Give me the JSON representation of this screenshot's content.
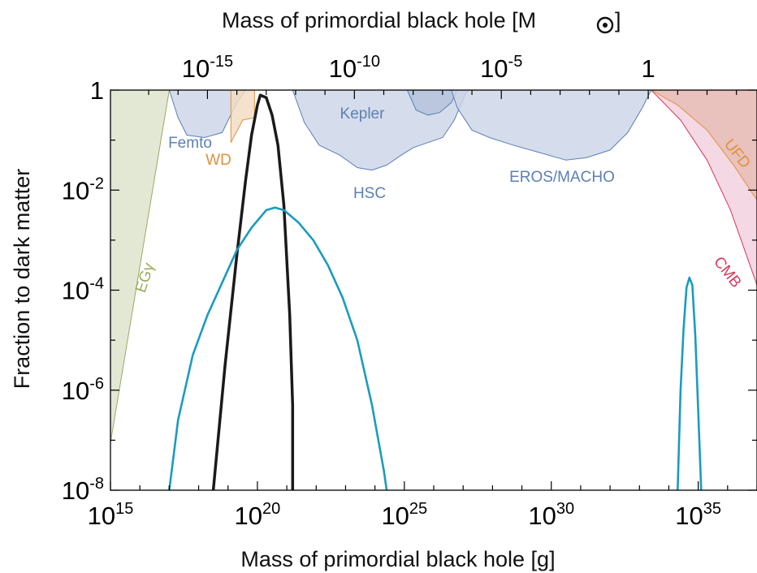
{
  "chart_data": {
    "type": "area",
    "xlabel": "Mass of primordial black hole [g]",
    "ylabel": "Fraction to dark matter",
    "top_xlabel": "Mass of primordial black hole [M",
    "top_xlabel_end": "]",
    "x_scale": "log",
    "y_scale": "log",
    "xlim_log10_g": [
      15,
      37
    ],
    "ylim_log10": [
      -8,
      0
    ],
    "x_ticks": [
      {
        "value": 15,
        "base": "10",
        "exp": "15"
      },
      {
        "value": 20,
        "base": "10",
        "exp": "20"
      },
      {
        "value": 25,
        "base": "10",
        "exp": "25"
      },
      {
        "value": 30,
        "base": "10",
        "exp": "30"
      },
      {
        "value": 35,
        "base": "10",
        "exp": "35"
      }
    ],
    "top_x_ticks": [
      {
        "value_log10_msun": -15,
        "base": "10",
        "exp": "-15"
      },
      {
        "value_log10_msun": -10,
        "base": "10",
        "exp": "-10"
      },
      {
        "value_log10_msun": -5,
        "base": "10",
        "exp": "-5"
      },
      {
        "value_log10_msun": 0,
        "base": "1",
        "exp": ""
      }
    ],
    "solar_mass_log10_g": 33.3,
    "y_ticks": [
      {
        "value": 0,
        "base": "1",
        "exp": ""
      },
      {
        "value": -2,
        "base": "10",
        "exp": "-2"
      },
      {
        "value": -4,
        "base": "10",
        "exp": "-4"
      },
      {
        "value": -6,
        "base": "10",
        "exp": "-6"
      },
      {
        "value": -8,
        "base": "10",
        "exp": "-8"
      }
    ],
    "constraints": [
      {
        "label": "EGγ",
        "color": "#9aab5e",
        "fill": "#dde3cc",
        "label_rotation": -72,
        "points": [
          [
            15.0,
            -7.05
          ],
          [
            17.0,
            0.0
          ],
          [
            15.0,
            0.0
          ]
        ]
      },
      {
        "label": "Femto",
        "color": "#5d80b4",
        "fill": "#ccd4e6",
        "points": [
          [
            17.0,
            0.0
          ],
          [
            17.3,
            -0.55
          ],
          [
            17.6,
            -0.9
          ],
          [
            18.2,
            -0.95
          ],
          [
            18.8,
            -0.85
          ],
          [
            19.3,
            -0.25
          ],
          [
            19.6,
            0.0
          ]
        ]
      },
      {
        "label": "WD",
        "color": "#e0913e",
        "fill": "#f2dcc2",
        "points": [
          [
            19.1,
            0.0
          ],
          [
            19.1,
            -1.05
          ],
          [
            19.5,
            -0.6
          ],
          [
            19.9,
            -0.55
          ],
          [
            19.9,
            0.0
          ]
        ]
      },
      {
        "label": "HSC",
        "color": "#5d80b4",
        "fill": "#ccd4e6",
        "points": [
          [
            21.2,
            0.0
          ],
          [
            21.6,
            -0.65
          ],
          [
            22.1,
            -1.1
          ],
          [
            22.8,
            -1.3
          ],
          [
            23.4,
            -1.55
          ],
          [
            23.9,
            -1.6
          ],
          [
            24.4,
            -1.5
          ],
          [
            24.9,
            -1.3
          ],
          [
            25.3,
            -1.15
          ],
          [
            25.8,
            -1.05
          ],
          [
            26.3,
            -0.95
          ],
          [
            26.7,
            -0.6
          ],
          [
            27.1,
            -0.05
          ],
          [
            27.2,
            0.0
          ]
        ]
      },
      {
        "label": "Kepler",
        "color": "#5d80b4",
        "fill": "#b5c2db",
        "points": [
          [
            25.1,
            0.0
          ],
          [
            25.4,
            -0.4
          ],
          [
            25.8,
            -0.5
          ],
          [
            26.2,
            -0.45
          ],
          [
            26.6,
            -0.25
          ],
          [
            26.8,
            0.0
          ]
        ]
      },
      {
        "label": "EROS/MACHO",
        "color": "#5d80b4",
        "fill": "#ccd4e6",
        "points": [
          [
            26.6,
            0.0
          ],
          [
            26.8,
            -0.35
          ],
          [
            27.3,
            -0.8
          ],
          [
            27.9,
            -0.95
          ],
          [
            28.7,
            -1.1
          ],
          [
            29.6,
            -1.25
          ],
          [
            30.5,
            -1.4
          ],
          [
            31.2,
            -1.35
          ],
          [
            32.0,
            -1.2
          ],
          [
            32.6,
            -0.85
          ],
          [
            33.1,
            -0.35
          ],
          [
            33.4,
            0.0
          ]
        ]
      },
      {
        "label": "CMB",
        "color": "#d83a5a",
        "fill": "#f1d0de",
        "label_rotation": 52,
        "points": [
          [
            33.4,
            0.0
          ],
          [
            34.4,
            -0.6
          ],
          [
            35.3,
            -1.4
          ],
          [
            36.1,
            -2.4
          ],
          [
            37.0,
            -3.9
          ],
          [
            37.0,
            0.0
          ]
        ]
      },
      {
        "label": "UFD",
        "color": "#e0913e",
        "fill": "#e7bcb4",
        "label_rotation": 52,
        "points": [
          [
            33.4,
            0.0
          ],
          [
            34.3,
            -0.3
          ],
          [
            35.3,
            -0.8
          ],
          [
            36.2,
            -1.5
          ],
          [
            37.0,
            -2.2
          ],
          [
            37.0,
            0.0
          ]
        ]
      }
    ],
    "series": [
      {
        "color": "#1a1a1a",
        "points": [
          [
            18.5,
            -8.0
          ],
          [
            18.9,
            -5.5
          ],
          [
            19.3,
            -3.3
          ],
          [
            19.6,
            -1.8
          ],
          [
            19.8,
            -0.9
          ],
          [
            20.0,
            -0.3
          ],
          [
            20.1,
            -0.1
          ],
          [
            20.3,
            -0.15
          ],
          [
            20.5,
            -0.5
          ],
          [
            20.7,
            -1.1
          ],
          [
            20.9,
            -2.3
          ],
          [
            21.1,
            -4.5
          ],
          [
            21.2,
            -6.3
          ],
          [
            21.2,
            -8.0
          ]
        ]
      },
      {
        "color": "#1b9bbf",
        "points": [
          [
            17.0,
            -8.0
          ],
          [
            17.3,
            -6.6
          ],
          [
            17.8,
            -5.3
          ],
          [
            18.3,
            -4.5
          ],
          [
            18.8,
            -3.85
          ],
          [
            19.3,
            -3.2
          ],
          [
            19.8,
            -2.75
          ],
          [
            20.3,
            -2.4
          ],
          [
            20.6,
            -2.35
          ],
          [
            20.9,
            -2.4
          ],
          [
            21.4,
            -2.65
          ],
          [
            21.9,
            -3.0
          ],
          [
            22.4,
            -3.5
          ],
          [
            22.9,
            -4.15
          ],
          [
            23.4,
            -5.0
          ],
          [
            23.9,
            -6.3
          ],
          [
            24.3,
            -7.6
          ],
          [
            24.4,
            -8.0
          ]
        ]
      },
      {
        "color": "#1b9bbf",
        "points": [
          [
            34.3,
            -8.0
          ],
          [
            34.4,
            -6.0
          ],
          [
            34.5,
            -4.8
          ],
          [
            34.6,
            -3.95
          ],
          [
            34.7,
            -3.75
          ],
          [
            34.8,
            -3.9
          ],
          [
            34.9,
            -4.9
          ],
          [
            35.0,
            -6.4
          ],
          [
            35.1,
            -8.0
          ]
        ]
      }
    ]
  }
}
